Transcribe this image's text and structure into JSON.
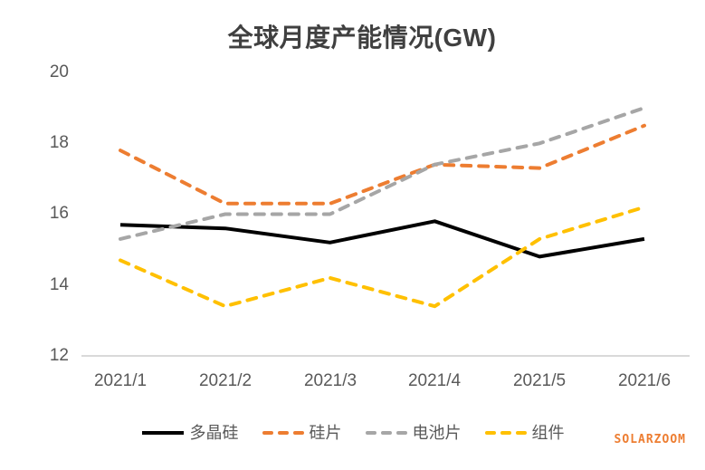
{
  "title": "全球月度产能情况(GW)",
  "watermark": "SOLARZOOM",
  "colors": {
    "polysilicon": "#000000",
    "wafer": "#ED7D31",
    "cell": "#A6A6A6",
    "module": "#FFC000",
    "axis_line": "#D9D9D9",
    "tick_text": "#595959",
    "title_text": "#404040"
  },
  "chart_data": {
    "type": "line",
    "title": "全球月度产能情况(GW)",
    "x": [
      "2021/1",
      "2021/2",
      "2021/3",
      "2021/4",
      "2021/5",
      "2021/6"
    ],
    "series": [
      {
        "name": "多晶硅",
        "color": "#000000",
        "style": "solid",
        "values": [
          15.7,
          15.6,
          15.2,
          15.8,
          14.8,
          15.3
        ]
      },
      {
        "name": "硅片",
        "color": "#ED7D31",
        "style": "dashed",
        "values": [
          17.8,
          16.3,
          16.3,
          17.4,
          17.3,
          18.5
        ]
      },
      {
        "name": "电池片",
        "color": "#A6A6A6",
        "style": "dashed",
        "values": [
          15.3,
          16.0,
          16.0,
          17.4,
          18.0,
          19.0
        ]
      },
      {
        "name": "组件",
        "color": "#FFC000",
        "style": "dashed",
        "values": [
          14.7,
          13.4,
          14.2,
          13.4,
          15.3,
          16.2
        ]
      }
    ],
    "xlabel": "",
    "ylabel": "",
    "ylim": [
      12,
      20
    ],
    "yticks": [
      12,
      14,
      16,
      18,
      20
    ],
    "grid": false,
    "legend_position": "bottom"
  }
}
